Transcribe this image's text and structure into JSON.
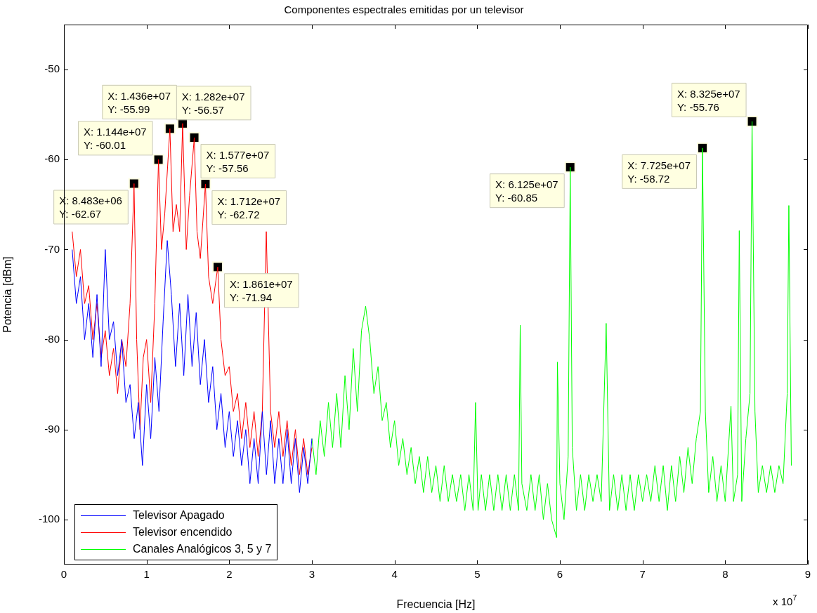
{
  "chart_data": {
    "type": "line",
    "title": "Componentes espectrales emitidas por un televisor",
    "xlabel": "Frecuencia [Hz]",
    "ylabel": "Potencia [dBm]",
    "xlim": [
      0,
      9
    ],
    "xticks": [
      0,
      1,
      2,
      3,
      4,
      5,
      6,
      7,
      8,
      9
    ],
    "ylim": [
      -105,
      -45
    ],
    "yticks": [
      -100,
      -90,
      -80,
      -70,
      -60,
      -50
    ],
    "grid": false,
    "legend": "bottom left",
    "series": [
      {
        "name": "Televisor Apagado",
        "color": "#0000ff",
        "x": [
          0.1,
          0.15,
          0.2,
          0.25,
          0.3,
          0.35,
          0.4,
          0.45,
          0.5,
          0.55,
          0.6,
          0.65,
          0.7,
          0.75,
          0.8,
          0.85,
          0.9,
          0.95,
          1.0,
          1.05,
          1.1,
          1.15,
          1.2,
          1.25,
          1.3,
          1.35,
          1.4,
          1.45,
          1.5,
          1.55,
          1.6,
          1.65,
          1.7,
          1.75,
          1.8,
          1.85,
          1.9,
          1.95,
          2.0,
          2.05,
          2.1,
          2.15,
          2.2,
          2.25,
          2.3,
          2.35,
          2.4,
          2.45,
          2.5,
          2.55,
          2.6,
          2.65,
          2.7,
          2.75,
          2.8,
          2.85,
          2.9,
          2.95,
          3.0
        ],
        "values": [
          -70,
          -76,
          -73,
          -80,
          -76,
          -82,
          -75,
          -83,
          -70,
          -80,
          -78,
          -84,
          -80,
          -87,
          -85,
          -91,
          -87,
          -94,
          -85,
          -91,
          -82,
          -88,
          -78,
          -69,
          -75,
          -83,
          -76,
          -84,
          -75,
          -83,
          -77,
          -85,
          -80,
          -87,
          -83,
          -90,
          -86,
          -92,
          -88,
          -93,
          -89,
          -94,
          -90,
          -96,
          -91,
          -96,
          -88,
          -95,
          -89,
          -96,
          -91,
          -96,
          -90,
          -96,
          -91,
          -97,
          -92,
          -96,
          -91
        ]
      },
      {
        "name": "Televisor encendido",
        "color": "#ff0000",
        "x": [
          0.1,
          0.15,
          0.2,
          0.25,
          0.3,
          0.35,
          0.4,
          0.45,
          0.5,
          0.55,
          0.6,
          0.65,
          0.7,
          0.75,
          0.8,
          0.8483,
          0.88,
          0.92,
          0.96,
          1.0,
          1.05,
          1.1,
          1.144,
          1.18,
          1.22,
          1.282,
          1.32,
          1.36,
          1.4,
          1.436,
          1.48,
          1.52,
          1.577,
          1.61,
          1.65,
          1.712,
          1.75,
          1.8,
          1.861,
          1.9,
          1.95,
          2.0,
          2.05,
          2.1,
          2.15,
          2.2,
          2.25,
          2.3,
          2.35,
          2.4,
          2.448,
          2.5,
          2.55,
          2.6,
          2.65,
          2.7,
          2.75,
          2.8,
          2.85,
          2.9,
          2.95,
          3.0
        ],
        "values": [
          -68,
          -73,
          -70,
          -76,
          -74,
          -80,
          -76,
          -82,
          -79,
          -84,
          -81,
          -86,
          -80,
          -83,
          -76,
          -62.67,
          -80,
          -90,
          -82,
          -80,
          -87,
          -76,
          -60.01,
          -70,
          -66,
          -56.57,
          -68,
          -65,
          -68,
          -55.99,
          -70,
          -64,
          -57.56,
          -68,
          -71,
          -62.72,
          -73,
          -76,
          -71.94,
          -80,
          -84,
          -83,
          -88,
          -86,
          -91,
          -87,
          -92,
          -88,
          -93,
          -88,
          -68,
          -88,
          -92,
          -88,
          -93,
          -89,
          -94,
          -90,
          -95,
          -91,
          -95,
          -92
        ]
      },
      {
        "name": "Canales Analógicos 3, 5 y 7",
        "color": "#00ff00",
        "x": [
          3.0,
          3.05,
          3.1,
          3.15,
          3.2,
          3.25,
          3.3,
          3.35,
          3.4,
          3.45,
          3.5,
          3.55,
          3.6,
          3.65,
          3.7,
          3.75,
          3.8,
          3.85,
          3.9,
          3.95,
          4.0,
          4.05,
          4.1,
          4.15,
          4.2,
          4.25,
          4.3,
          4.35,
          4.4,
          4.45,
          4.5,
          4.55,
          4.6,
          4.65,
          4.7,
          4.75,
          4.8,
          4.85,
          4.9,
          4.95,
          4.98,
          5.01,
          5.05,
          5.1,
          5.15,
          5.2,
          5.25,
          5.3,
          5.35,
          5.4,
          5.45,
          5.5,
          5.52,
          5.54,
          5.6,
          5.65,
          5.7,
          5.75,
          5.8,
          5.85,
          5.9,
          5.96,
          5.97,
          6.0,
          6.05,
          6.1,
          6.125,
          6.15,
          6.2,
          6.25,
          6.3,
          6.35,
          6.4,
          6.45,
          6.5,
          6.56,
          6.6,
          6.65,
          6.7,
          6.75,
          6.8,
          6.85,
          6.9,
          6.95,
          7.0,
          7.05,
          7.1,
          7.15,
          7.2,
          7.25,
          7.3,
          7.35,
          7.4,
          7.45,
          7.5,
          7.55,
          7.6,
          7.65,
          7.7,
          7.725,
          7.76,
          7.8,
          7.85,
          7.9,
          7.95,
          8.0,
          8.07,
          8.1,
          8.15,
          8.17,
          8.2,
          8.25,
          8.3,
          8.325,
          8.36,
          8.4,
          8.45,
          8.5,
          8.55,
          8.6,
          8.65,
          8.7,
          8.75,
          8.77,
          8.8
        ],
        "values": [
          -91,
          -95,
          -89,
          -93,
          -87,
          -92,
          -86,
          -92,
          -84,
          -90,
          -81,
          -88,
          -79,
          -76.3,
          -80,
          -86,
          -83,
          -89,
          -87,
          -92,
          -89,
          -94,
          -91,
          -95,
          -92,
          -96,
          -93,
          -97,
          -93,
          -97,
          -94,
          -98,
          -94,
          -98,
          -95,
          -98,
          -95,
          -99,
          -95,
          -99,
          -87,
          -99,
          -95,
          -99,
          -95,
          -99,
          -95,
          -99,
          -95,
          -99,
          -95,
          -99,
          -78.4,
          -96,
          -99,
          -95,
          -99,
          -95,
          -100,
          -96,
          -100,
          -102,
          -82.5,
          -96,
          -100,
          -93,
          -60.85,
          -92,
          -99,
          -95,
          -99,
          -95,
          -98,
          -95,
          -98,
          -78.2,
          -99,
          -95,
          -99,
          -95,
          -99,
          -95,
          -99,
          -95,
          -98,
          -95,
          -98,
          -94,
          -98,
          -94,
          -99,
          -94,
          -98,
          -93,
          -97,
          -92,
          -96,
          -91,
          -88,
          -58.72,
          -88,
          -97,
          -93,
          -98,
          -94,
          -98,
          -87.4,
          -98,
          -95,
          -67.9,
          -98,
          -91,
          -86,
          -55.76,
          -88,
          -97,
          -94,
          -97,
          -94,
          -97,
          -94,
          -96,
          -86,
          -65.1,
          -94
        ]
      }
    ],
    "annotations": [
      {
        "text": "X: 8.483e+06\nY: -62.67",
        "x": 0.8483,
        "y": -62.67
      },
      {
        "text": "X: 1.144e+07\nY: -60.01",
        "x": 1.144,
        "y": -60.01
      },
      {
        "text": "X: 1.436e+07\nY: -55.99",
        "x": 1.436,
        "y": -55.99
      },
      {
        "text": "X: 1.282e+07\nY: -56.57",
        "x": 1.282,
        "y": -56.57
      },
      {
        "text": "X: 1.577e+07\nY: -57.56",
        "x": 1.577,
        "y": -57.56
      },
      {
        "text": "X: 1.712e+07\nY: -62.72",
        "x": 1.712,
        "y": -62.72
      },
      {
        "text": "X: 1.861e+07\nY: -71.94",
        "x": 1.861,
        "y": -71.94
      },
      {
        "text": "X: 6.125e+07\nY: -60.85",
        "x": 6.125,
        "y": -60.85
      },
      {
        "text": "X: 7.725e+07\nY: -58.72",
        "x": 7.725,
        "y": -58.72
      },
      {
        "text": "X: 8.325e+07\nY: -55.76",
        "x": 8.325,
        "y": -55.76
      },
      "x 10$^{7}$"
    ]
  }
}
